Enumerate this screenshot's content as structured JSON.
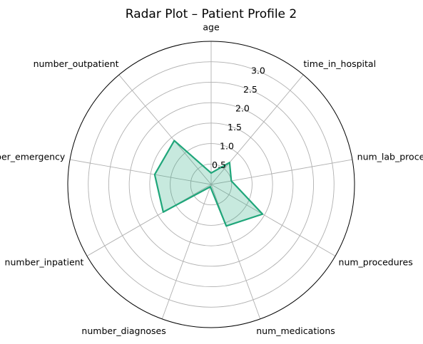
{
  "chart_data": {
    "type": "radar",
    "title": "Radar Plot – Patient Profile 2",
    "axes": [
      "age",
      "time_in_hospital",
      "num_lab_procedures",
      "num_procedures",
      "num_medications",
      "number_diagnoses",
      "number_inpatient",
      "number_emergency",
      "number_outpatient"
    ],
    "values": [
      0.28,
      0.7,
      0.5,
      1.45,
      1.08,
      0.06,
      1.35,
      1.4,
      1.4
    ],
    "rlim": [
      0,
      3.5
    ],
    "rticks": [
      0.5,
      1.0,
      1.5,
      2.0,
      2.5,
      3.0
    ],
    "rtick_labels": [
      "0.5",
      "1.0",
      "1.5",
      "2.0",
      "2.5",
      "3.0"
    ],
    "grid": true,
    "line_color": "#1fa67a",
    "fill_color": "#1fa67a"
  }
}
